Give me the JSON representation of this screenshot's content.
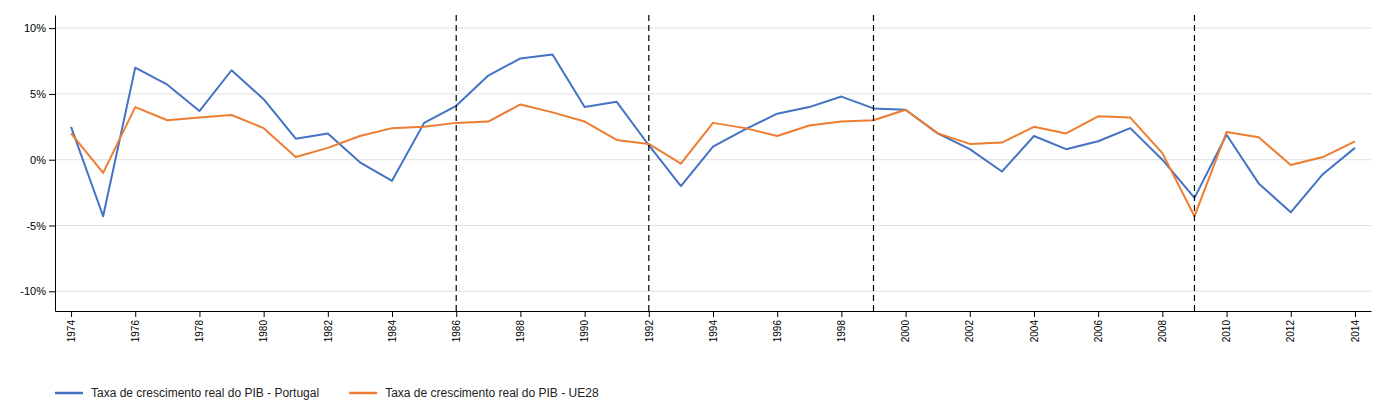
{
  "chart_data": {
    "type": "line",
    "x": [
      1974,
      1975,
      1976,
      1977,
      1978,
      1979,
      1980,
      1981,
      1982,
      1983,
      1984,
      1985,
      1986,
      1987,
      1988,
      1989,
      1990,
      1991,
      1992,
      1993,
      1994,
      1995,
      1996,
      1997,
      1998,
      1999,
      2000,
      2001,
      2002,
      2003,
      2004,
      2005,
      2006,
      2007,
      2008,
      2009,
      2010,
      2011,
      2012,
      2013,
      2014
    ],
    "series": [
      {
        "name": "Taxa de crescimento real do PIB - Portugal",
        "color": "#4472C4",
        "values": [
          2.5,
          -4.3,
          7.0,
          5.7,
          3.7,
          6.8,
          4.6,
          1.6,
          2.0,
          -0.2,
          -1.6,
          2.8,
          4.1,
          6.4,
          7.7,
          8.0,
          4.0,
          4.4,
          1.1,
          -2.0,
          1.0,
          2.3,
          3.5,
          4.0,
          4.8,
          3.9,
          3.8,
          2.0,
          0.8,
          -0.9,
          1.8,
          0.8,
          1.4,
          2.4,
          0.0,
          -2.9,
          1.9,
          -1.8,
          -4.0,
          -1.1,
          0.9
        ]
      },
      {
        "name": "Taxa de crescimento real do PIB - UE28",
        "color": "#ED7D31",
        "values": [
          2.0,
          -1.0,
          4.0,
          3.0,
          3.2,
          3.4,
          2.4,
          0.2,
          0.9,
          1.8,
          2.4,
          2.5,
          2.8,
          2.9,
          4.2,
          3.6,
          2.9,
          1.5,
          1.2,
          -0.3,
          2.8,
          2.4,
          1.8,
          2.6,
          2.9,
          3.0,
          3.8,
          2.0,
          1.2,
          1.3,
          2.5,
          2.0,
          3.3,
          3.2,
          0.5,
          -4.3,
          2.1,
          1.7,
          -0.4,
          0.2,
          1.4
        ]
      }
    ],
    "vlines": {
      "values": [
        1986,
        1992,
        1999,
        2009
      ],
      "color": "black",
      "line_style": "dashed"
    },
    "xlim": [
      1973.5,
      2014.5
    ],
    "xticks": [
      1974,
      1976,
      1978,
      1980,
      1982,
      1984,
      1986,
      1988,
      1990,
      1992,
      1994,
      1996,
      1998,
      2000,
      2002,
      2004,
      2006,
      2008,
      2010,
      2012,
      2014
    ],
    "ylim": [
      -11.5,
      11.0
    ],
    "yticks": [
      {
        "value": -10,
        "label": "-10%"
      },
      {
        "value": -5,
        "label": "-5%"
      },
      {
        "value": 0,
        "label": "0%"
      },
      {
        "value": 5,
        "label": "5%"
      },
      {
        "value": 10,
        "label": "10%"
      }
    ],
    "grid": true,
    "legend": "bottom"
  }
}
